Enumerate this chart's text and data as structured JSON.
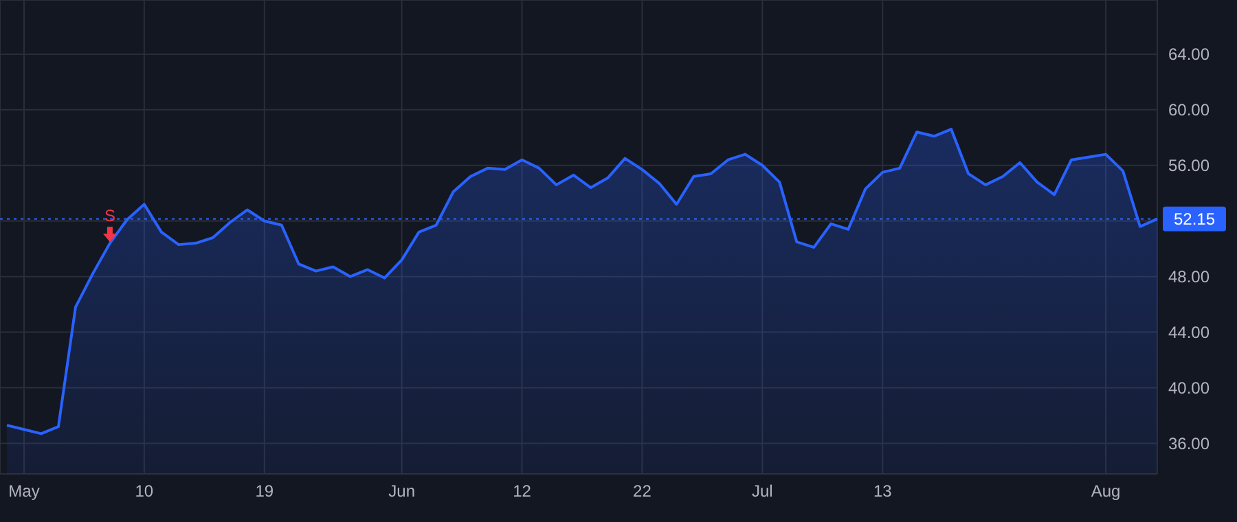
{
  "chart_data": {
    "type": "area",
    "categories": [
      null,
      "May",
      null,
      null,
      null,
      null,
      null,
      null,
      "10",
      null,
      null,
      null,
      null,
      null,
      null,
      "19",
      null,
      null,
      null,
      null,
      null,
      null,
      null,
      "Jun",
      null,
      null,
      null,
      null,
      null,
      null,
      "12",
      null,
      null,
      null,
      null,
      null,
      null,
      "22",
      null,
      null,
      null,
      null,
      null,
      null,
      "Jul",
      null,
      null,
      null,
      null,
      null,
      null,
      "13",
      null,
      null,
      null,
      null,
      null,
      null,
      null,
      null,
      null,
      null,
      null,
      null,
      "Aug",
      null,
      null,
      null
    ],
    "series": [
      {
        "color": "#2962ff",
        "values": [
          37.3,
          37.0,
          36.7,
          37.2,
          45.8,
          48.2,
          50.4,
          52.1,
          53.2,
          51.2,
          50.3,
          50.4,
          50.8,
          51.9,
          52.8,
          52.0,
          51.7,
          48.9,
          48.4,
          48.7,
          48.0,
          48.5,
          47.9,
          49.2,
          51.2,
          51.7,
          54.1,
          55.2,
          55.8,
          55.7,
          56.4,
          55.8,
          54.6,
          55.3,
          54.4,
          55.1,
          56.5,
          55.7,
          54.7,
          53.2,
          55.2,
          55.4,
          56.4,
          56.8,
          56.0,
          54.8,
          50.5,
          50.1,
          51.8,
          51.4,
          54.3,
          55.5,
          55.8,
          58.4,
          58.1,
          58.6,
          55.4,
          54.6,
          55.2,
          56.2,
          54.8,
          53.9,
          56.4,
          56.6,
          56.8,
          55.6,
          51.6,
          52.15
        ]
      }
    ],
    "ylim": [
      33.8,
      67.9
    ],
    "yticks": [
      {
        "value": 36,
        "label": "36.00"
      },
      {
        "value": 40,
        "label": "40.00"
      },
      {
        "value": 44,
        "label": "44.00"
      },
      {
        "value": 48,
        "label": "48.00"
      },
      {
        "value": 52,
        "label": null
      },
      {
        "value": 56,
        "label": "56.00"
      },
      {
        "value": 60,
        "label": "60.00"
      },
      {
        "value": 64,
        "label": "64.00"
      }
    ],
    "grid": true,
    "ref_lines": [
      {
        "axis": "y",
        "value": 52.15,
        "label": "52.15",
        "color": "#2962ff",
        "line_style": "dotted"
      }
    ],
    "annotations": [
      {
        "text": "S",
        "y": 50.3
      }
    ]
  }
}
